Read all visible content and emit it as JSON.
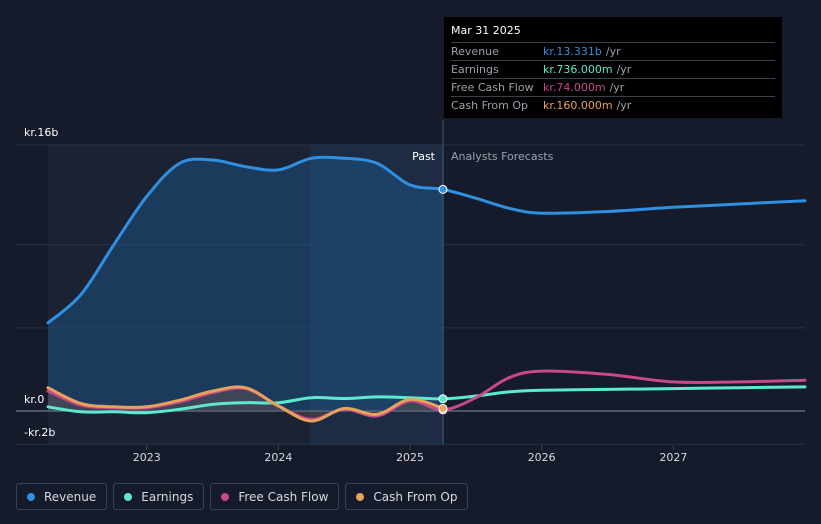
{
  "chart_data": {
    "type": "line",
    "y_axis": {
      "top_label": "kr.16b",
      "zero_label": "kr.0",
      "bottom_label": "-kr.2b",
      "ylim": [
        -2,
        16
      ]
    },
    "x_axis": {
      "ticks": [
        "2023",
        "2024",
        "2025",
        "2026",
        "2027"
      ],
      "xlim": [
        2022.25,
        2028.0
      ]
    },
    "divider": {
      "x": 2025.25,
      "past_label": "Past",
      "forecast_label": "Analysts Forecasts"
    },
    "series": [
      {
        "name": "Revenue",
        "color": "#2f8fe0",
        "points": [
          [
            2022.25,
            5.3
          ],
          [
            2022.5,
            7.0
          ],
          [
            2022.75,
            10.0
          ],
          [
            2023.0,
            12.9
          ],
          [
            2023.25,
            14.9
          ],
          [
            2023.5,
            15.1
          ],
          [
            2023.75,
            14.7
          ],
          [
            2024.0,
            14.5
          ],
          [
            2024.25,
            15.2
          ],
          [
            2024.5,
            15.2
          ],
          [
            2024.75,
            14.9
          ],
          [
            2025.0,
            13.6
          ],
          [
            2025.25,
            13.331
          ],
          [
            2025.5,
            12.8
          ],
          [
            2025.75,
            12.2
          ],
          [
            2026.0,
            11.9
          ],
          [
            2026.5,
            12.0
          ],
          [
            2027.0,
            12.25
          ],
          [
            2027.5,
            12.45
          ],
          [
            2028.0,
            12.65
          ]
        ]
      },
      {
        "name": "Earnings",
        "color": "#5ee8d0",
        "points": [
          [
            2022.25,
            0.25
          ],
          [
            2022.5,
            -0.05
          ],
          [
            2022.75,
            -0.05
          ],
          [
            2023.0,
            -0.1
          ],
          [
            2023.25,
            0.1
          ],
          [
            2023.5,
            0.4
          ],
          [
            2023.75,
            0.5
          ],
          [
            2024.0,
            0.5
          ],
          [
            2024.25,
            0.8
          ],
          [
            2024.5,
            0.75
          ],
          [
            2024.75,
            0.85
          ],
          [
            2025.0,
            0.8
          ],
          [
            2025.25,
            0.736
          ],
          [
            2025.5,
            0.9
          ],
          [
            2025.75,
            1.15
          ],
          [
            2026.0,
            1.25
          ],
          [
            2026.5,
            1.3
          ],
          [
            2027.0,
            1.35
          ],
          [
            2027.5,
            1.4
          ],
          [
            2028.0,
            1.45
          ]
        ]
      },
      {
        "name": "Free Cash Flow",
        "color": "#c8488a",
        "points": [
          [
            2022.25,
            1.2
          ],
          [
            2022.5,
            0.35
          ],
          [
            2022.75,
            0.2
          ],
          [
            2023.0,
            0.2
          ],
          [
            2023.25,
            0.55
          ],
          [
            2023.5,
            1.1
          ],
          [
            2023.75,
            1.35
          ],
          [
            2024.0,
            0.3
          ],
          [
            2024.25,
            -0.5
          ],
          [
            2024.5,
            0.1
          ],
          [
            2024.75,
            -0.3
          ],
          [
            2025.0,
            0.6
          ],
          [
            2025.25,
            0.074
          ],
          [
            2025.5,
            0.8
          ],
          [
            2025.75,
            2.0
          ],
          [
            2026.0,
            2.4
          ],
          [
            2026.5,
            2.2
          ],
          [
            2027.0,
            1.75
          ],
          [
            2027.5,
            1.75
          ],
          [
            2028.0,
            1.85
          ]
        ]
      },
      {
        "name": "Cash From Op",
        "color": "#e7a35c",
        "points": [
          [
            2022.25,
            1.4
          ],
          [
            2022.5,
            0.45
          ],
          [
            2022.75,
            0.25
          ],
          [
            2023.0,
            0.25
          ],
          [
            2023.25,
            0.65
          ],
          [
            2023.5,
            1.2
          ],
          [
            2023.75,
            1.4
          ],
          [
            2024.0,
            0.3
          ],
          [
            2024.25,
            -0.6
          ],
          [
            2024.5,
            0.15
          ],
          [
            2024.75,
            -0.2
          ],
          [
            2025.0,
            0.7
          ],
          [
            2025.25,
            0.16
          ]
        ]
      }
    ]
  },
  "tooltip": {
    "date": "Mar 31 2025",
    "rows": [
      {
        "label": "Revenue",
        "value": "kr.13.331b",
        "unit": "/yr",
        "color": "#2f8fe0"
      },
      {
        "label": "Earnings",
        "value": "kr.736.000m",
        "unit": "/yr",
        "color": "#5ee8d0"
      },
      {
        "label": "Free Cash Flow",
        "value": "kr.74.000m",
        "unit": "/yr",
        "color": "#c8488a"
      },
      {
        "label": "Cash From Op",
        "value": "kr.160.000m",
        "unit": "/yr",
        "color": "#e7a35c"
      }
    ]
  },
  "legend": [
    {
      "label": "Revenue",
      "color": "#2f8fe0"
    },
    {
      "label": "Earnings",
      "color": "#5ee8d0"
    },
    {
      "label": "Free Cash Flow",
      "color": "#c8488a"
    },
    {
      "label": "Cash From Op",
      "color": "#e7a35c"
    }
  ]
}
